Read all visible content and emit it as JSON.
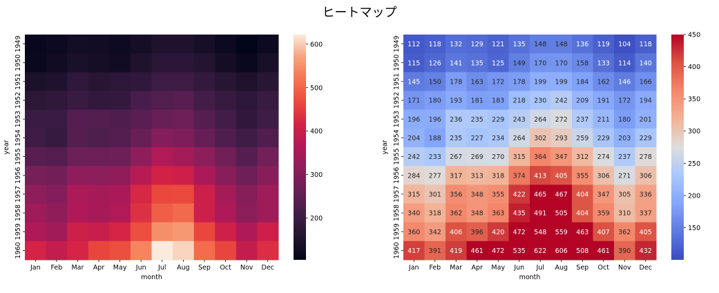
{
  "figure": {
    "title": "ヒートマップ"
  },
  "chart_data": [
    {
      "type": "heatmap",
      "xlabel": "month",
      "ylabel": "year",
      "x_categories": [
        "Jan",
        "Feb",
        "Mar",
        "Apr",
        "May",
        "Jun",
        "Jul",
        "Aug",
        "Sep",
        "Oct",
        "Nov",
        "Dec"
      ],
      "y_categories": [
        "1949",
        "1950",
        "1951",
        "1952",
        "1953",
        "1954",
        "1955",
        "1956",
        "1957",
        "1958",
        "1959",
        "1960"
      ],
      "values": [
        [
          112,
          118,
          132,
          129,
          121,
          135,
          148,
          148,
          136,
          119,
          104,
          118
        ],
        [
          115,
          126,
          141,
          135,
          125,
          149,
          170,
          170,
          158,
          133,
          114,
          140
        ],
        [
          145,
          150,
          178,
          163,
          172,
          178,
          199,
          199,
          184,
          162,
          146,
          166
        ],
        [
          171,
          180,
          193,
          181,
          183,
          218,
          230,
          242,
          209,
          191,
          172,
          194
        ],
        [
          196,
          196,
          236,
          235,
          229,
          243,
          264,
          272,
          237,
          211,
          180,
          201
        ],
        [
          204,
          188,
          235,
          227,
          234,
          264,
          302,
          293,
          259,
          229,
          203,
          229
        ],
        [
          242,
          233,
          267,
          269,
          270,
          315,
          364,
          347,
          312,
          274,
          237,
          278
        ],
        [
          284,
          277,
          317,
          313,
          318,
          374,
          413,
          405,
          355,
          306,
          271,
          306
        ],
        [
          315,
          301,
          356,
          348,
          355,
          422,
          465,
          467,
          404,
          347,
          305,
          336
        ],
        [
          340,
          318,
          362,
          348,
          363,
          435,
          491,
          505,
          404,
          359,
          310,
          337
        ],
        [
          360,
          342,
          406,
          396,
          420,
          472,
          548,
          559,
          463,
          407,
          362,
          405
        ],
        [
          417,
          391,
          419,
          461,
          472,
          535,
          622,
          606,
          508,
          461,
          390,
          432
        ]
      ],
      "colormap": "rocket",
      "annotated": false,
      "colorbar": {
        "vmin": 104,
        "vmax": 622,
        "ticks": [
          200,
          300,
          400,
          500,
          600
        ]
      }
    },
    {
      "type": "heatmap",
      "xlabel": "month",
      "ylabel": "year",
      "x_categories": [
        "Jan",
        "Feb",
        "Mar",
        "Apr",
        "May",
        "Jun",
        "Jul",
        "Aug",
        "Sep",
        "Oct",
        "Nov",
        "Dec"
      ],
      "y_categories": [
        "1949",
        "1950",
        "1951",
        "1952",
        "1953",
        "1954",
        "1955",
        "1956",
        "1957",
        "1958",
        "1959",
        "1960"
      ],
      "values": [
        [
          112,
          118,
          132,
          129,
          121,
          135,
          148,
          148,
          136,
          119,
          104,
          118
        ],
        [
          115,
          126,
          141,
          135,
          125,
          149,
          170,
          170,
          158,
          133,
          114,
          140
        ],
        [
          145,
          150,
          178,
          163,
          172,
          178,
          199,
          199,
          184,
          162,
          146,
          166
        ],
        [
          171,
          180,
          193,
          181,
          183,
          218,
          230,
          242,
          209,
          191,
          172,
          194
        ],
        [
          196,
          196,
          236,
          235,
          229,
          243,
          264,
          272,
          237,
          211,
          180,
          201
        ],
        [
          204,
          188,
          235,
          227,
          234,
          264,
          302,
          293,
          259,
          229,
          203,
          229
        ],
        [
          242,
          233,
          267,
          269,
          270,
          315,
          364,
          347,
          312,
          274,
          237,
          278
        ],
        [
          284,
          277,
          317,
          313,
          318,
          374,
          413,
          405,
          355,
          306,
          271,
          306
        ],
        [
          315,
          301,
          356,
          348,
          355,
          422,
          465,
          467,
          404,
          347,
          305,
          336
        ],
        [
          340,
          318,
          362,
          348,
          363,
          435,
          491,
          505,
          404,
          359,
          310,
          337
        ],
        [
          360,
          342,
          406,
          396,
          420,
          472,
          548,
          559,
          463,
          407,
          362,
          405
        ],
        [
          417,
          391,
          419,
          461,
          472,
          535,
          622,
          606,
          508,
          461,
          390,
          432
        ]
      ],
      "colormap": "coolwarm",
      "annotated": true,
      "colorbar": {
        "vmin": 100,
        "vmax": 450,
        "ticks": [
          150,
          200,
          250,
          300,
          350,
          400,
          450
        ]
      }
    }
  ]
}
